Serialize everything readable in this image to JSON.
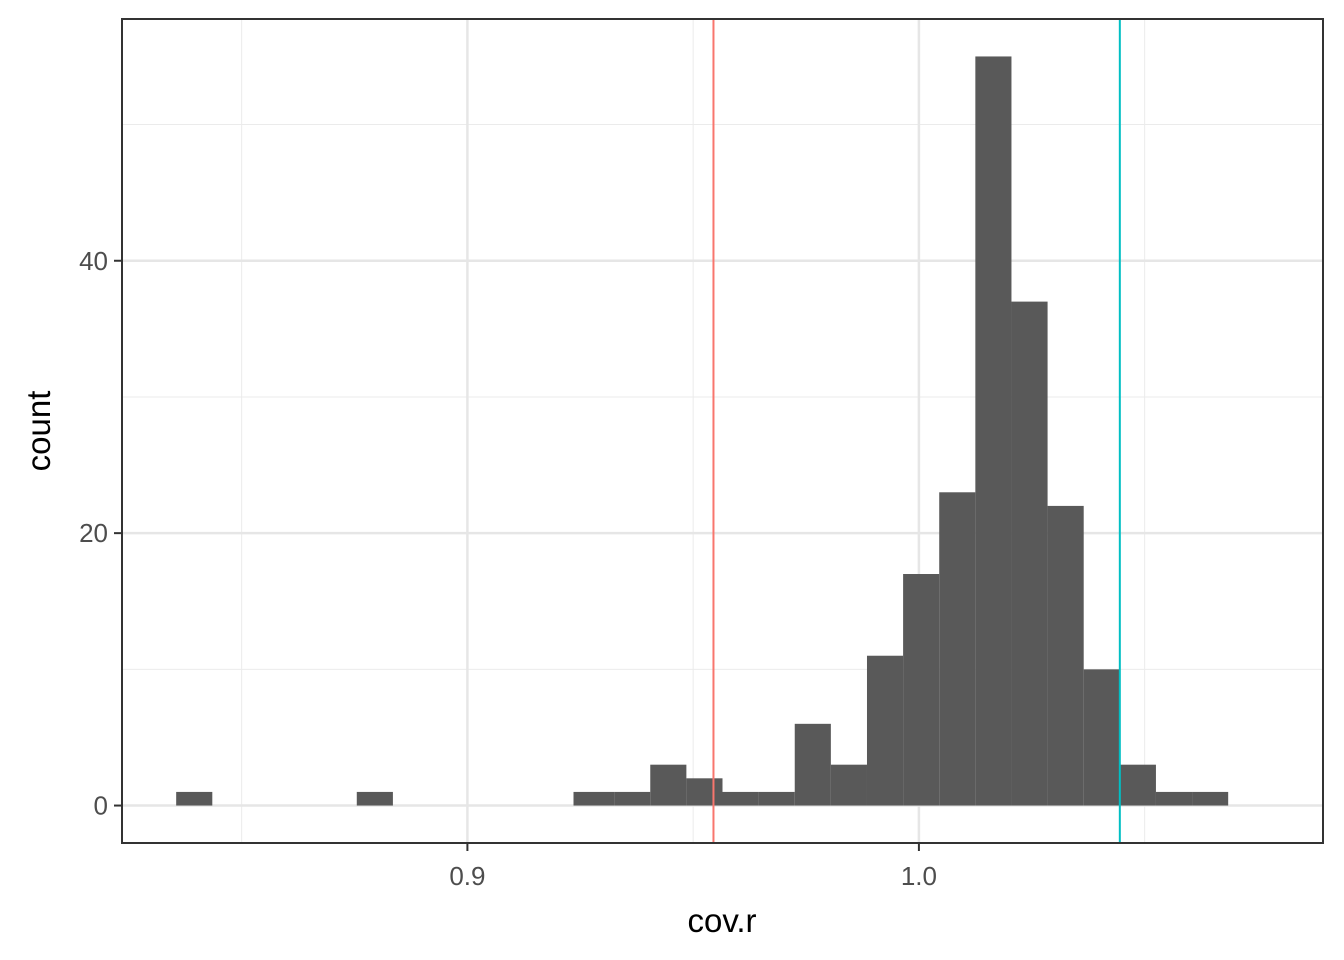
{
  "chart_data": {
    "type": "bar",
    "xlabel": "cov.r",
    "ylabel": "count",
    "xlim": [
      0.8235,
      1.0895
    ],
    "ylim": [
      -2.75,
      57.75
    ],
    "x_ticks": [
      0.9,
      1.0
    ],
    "x_tick_labels": [
      "0.9",
      "1.0"
    ],
    "x_minor_ticks": [
      0.85,
      0.95,
      1.05
    ],
    "y_ticks": [
      0,
      20,
      40
    ],
    "y_tick_labels": [
      "0",
      "20",
      "40"
    ],
    "y_minor_ticks": [
      10,
      30,
      50
    ],
    "grid": true,
    "bar_color": "#595959",
    "bins": [
      {
        "x0": 0.8355,
        "x1": 0.8435,
        "count": 1
      },
      {
        "x0": 0.8435,
        "x1": 0.8515,
        "count": 0
      },
      {
        "x0": 0.8515,
        "x1": 0.8595,
        "count": 0
      },
      {
        "x0": 0.8595,
        "x1": 0.8675,
        "count": 0
      },
      {
        "x0": 0.8675,
        "x1": 0.8755,
        "count": 0
      },
      {
        "x0": 0.8755,
        "x1": 0.8835,
        "count": 1
      },
      {
        "x0": 0.8835,
        "x1": 0.8915,
        "count": 0
      },
      {
        "x0": 0.8915,
        "x1": 0.8995,
        "count": 0
      },
      {
        "x0": 0.8995,
        "x1": 0.9075,
        "count": 0
      },
      {
        "x0": 0.9075,
        "x1": 0.9155,
        "count": 0
      },
      {
        "x0": 0.9155,
        "x1": 0.9235,
        "count": 0
      },
      {
        "x0": 0.9235,
        "x1": 0.9325,
        "count": 1
      },
      {
        "x0": 0.9325,
        "x1": 0.9405,
        "count": 1
      },
      {
        "x0": 0.9405,
        "x1": 0.9485,
        "count": 3
      },
      {
        "x0": 0.9485,
        "x1": 0.9565,
        "count": 2
      },
      {
        "x0": 0.9565,
        "x1": 0.9645,
        "count": 1
      },
      {
        "x0": 0.9645,
        "x1": 0.9725,
        "count": 1
      },
      {
        "x0": 0.9725,
        "x1": 0.9805,
        "count": 6
      },
      {
        "x0": 0.9805,
        "x1": 0.9885,
        "count": 3
      },
      {
        "x0": 0.9885,
        "x1": 0.9965,
        "count": 11
      },
      {
        "x0": 0.9965,
        "x1": 1.0045,
        "count": 17
      },
      {
        "x0": 1.0045,
        "x1": 1.0125,
        "count": 23
      },
      {
        "x0": 1.0125,
        "x1": 1.0205,
        "count": 55
      },
      {
        "x0": 1.0205,
        "x1": 1.0285,
        "count": 37
      },
      {
        "x0": 1.0285,
        "x1": 1.0365,
        "count": 22
      },
      {
        "x0": 1.0365,
        "x1": 1.0445,
        "count": 10
      },
      {
        "x0": 1.0445,
        "x1": 1.0525,
        "count": 3
      },
      {
        "x0": 1.0525,
        "x1": 1.0605,
        "count": 1
      },
      {
        "x0": 1.0605,
        "x1": 1.0685,
        "count": 1
      }
    ],
    "vlines": [
      {
        "x": 0.9545,
        "color": "#F8766D"
      },
      {
        "x": 1.0445,
        "color": "#00BFC4"
      }
    ]
  }
}
